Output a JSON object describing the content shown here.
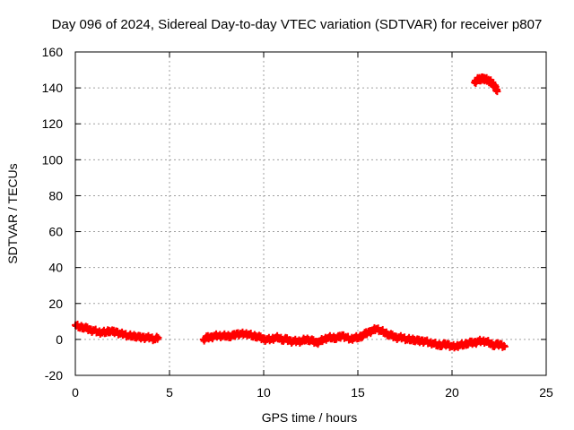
{
  "chart_data": {
    "type": "scatter",
    "title": "Day 096 of 2024, Sidereal Day-to-day VTEC variation (SDTVAR) for receiver p807",
    "xlabel": "GPS time / hours",
    "ylabel": "SDTVAR / TECUs",
    "xlim": [
      0,
      25
    ],
    "ylim": [
      -20,
      160
    ],
    "xticks": [
      0,
      5,
      10,
      15,
      20,
      25
    ],
    "yticks": [
      -20,
      0,
      20,
      40,
      60,
      80,
      100,
      120,
      140,
      160
    ],
    "grid": true,
    "marker": "+",
    "color": "#ff0000",
    "series": [
      {
        "name": "SDTVAR",
        "x": [
          0.0,
          0.2,
          0.4,
          0.6,
          0.8,
          1.0,
          1.2,
          1.4,
          1.6,
          1.8,
          2.0,
          2.2,
          2.4,
          2.6,
          2.8,
          3.0,
          3.2,
          3.4,
          3.6,
          3.8,
          4.0,
          4.2,
          4.4,
          6.8,
          7.0,
          7.2,
          7.4,
          7.6,
          7.8,
          8.0,
          8.2,
          8.4,
          8.6,
          8.8,
          9.0,
          9.2,
          9.4,
          9.6,
          9.8,
          10.0,
          10.2,
          10.4,
          10.6,
          10.8,
          11.0,
          11.2,
          11.4,
          11.6,
          11.8,
          12.0,
          12.2,
          12.4,
          12.6,
          12.8,
          13.0,
          13.2,
          13.4,
          13.6,
          13.8,
          14.0,
          14.2,
          14.4,
          14.6,
          14.8,
          15.0,
          15.2,
          15.4,
          15.6,
          15.8,
          16.0,
          16.2,
          16.4,
          16.6,
          16.8,
          17.0,
          17.2,
          17.4,
          17.6,
          17.8,
          18.0,
          18.2,
          18.4,
          18.6,
          18.8,
          19.0,
          19.2,
          19.4,
          19.6,
          19.8,
          20.0,
          20.2,
          20.4,
          20.6,
          20.8,
          21.0,
          21.2,
          21.4,
          21.6,
          21.8,
          22.0,
          22.2,
          22.4,
          22.6,
          22.8,
          21.2,
          21.3,
          21.4,
          21.5,
          21.6,
          21.7,
          21.8,
          21.9,
          22.0,
          22.1,
          22.2,
          22.3,
          22.4
        ],
        "y": [
          8,
          7,
          7,
          6,
          5,
          5,
          4,
          4,
          4,
          5,
          4,
          4,
          3,
          3,
          2,
          2,
          2,
          1,
          1,
          1,
          1,
          0,
          1,
          0,
          1,
          1,
          2,
          2,
          2,
          2,
          2,
          2,
          3,
          3,
          3,
          3,
          2,
          2,
          1,
          0,
          0,
          0,
          1,
          1,
          0,
          0,
          -1,
          -1,
          -1,
          -1,
          0,
          0,
          -1,
          -2,
          -1,
          0,
          1,
          1,
          1,
          1,
          2,
          1,
          0,
          1,
          1,
          2,
          3,
          4,
          5,
          6,
          5,
          4,
          3,
          2,
          1,
          1,
          1,
          0,
          0,
          0,
          -1,
          -1,
          -1,
          -2,
          -2,
          -3,
          -3,
          -3,
          -3,
          -4,
          -4,
          -3,
          -3,
          -2,
          -2,
          -2,
          -1,
          -1,
          -1,
          -2,
          -3,
          -3,
          -3,
          -4,
          143,
          144,
          145,
          145,
          145,
          145,
          145,
          144,
          144,
          143,
          142,
          140,
          138
        ]
      }
    ]
  }
}
